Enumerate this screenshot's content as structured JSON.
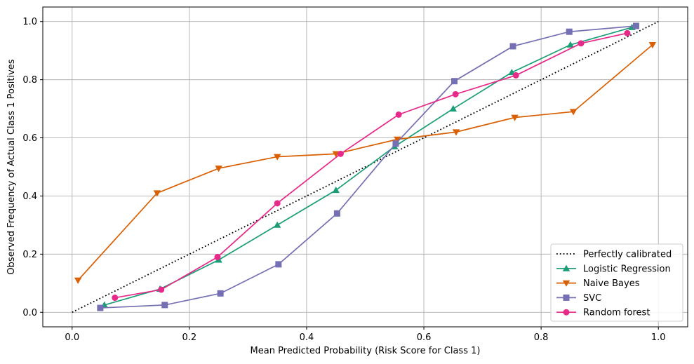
{
  "chart_data": {
    "type": "line",
    "title": "",
    "xlabel": "Mean Predicted Probability (Risk Score for Class 1)",
    "ylabel": "Observed Frequency of Actual Class 1 Positives",
    "xlim": [
      -0.05,
      1.05
    ],
    "ylim": [
      -0.05,
      1.05
    ],
    "xticks": [
      0.0,
      0.2,
      0.4,
      0.6,
      0.8,
      1.0
    ],
    "yticks": [
      0.0,
      0.2,
      0.4,
      0.6,
      0.8,
      1.0
    ],
    "xtick_labels": [
      "0.0",
      "0.2",
      "0.4",
      "0.6",
      "0.8",
      "1.0"
    ],
    "ytick_labels": [
      "0.0",
      "0.2",
      "0.4",
      "0.6",
      "0.8",
      "1.0"
    ],
    "grid": true,
    "legend_position": "bottom-right",
    "reference": {
      "name": "Perfectly calibrated",
      "x": [
        0,
        1
      ],
      "y": [
        0,
        1
      ],
      "color": "#000000",
      "style": "dotted"
    },
    "series": [
      {
        "name": "Logistic Regression",
        "color": "#1b9e77",
        "marker": "triangle-up",
        "x": [
          0.055,
          0.15,
          0.25,
          0.35,
          0.45,
          0.55,
          0.65,
          0.75,
          0.85,
          0.955
        ],
        "y": [
          0.025,
          0.08,
          0.18,
          0.3,
          0.42,
          0.57,
          0.7,
          0.825,
          0.92,
          0.98
        ]
      },
      {
        "name": "Naive Bayes",
        "color": "#d95f02",
        "marker": "triangle-down",
        "x": [
          0.01,
          0.145,
          0.25,
          0.35,
          0.45,
          0.555,
          0.655,
          0.755,
          0.855,
          0.99
        ],
        "y": [
          0.11,
          0.41,
          0.495,
          0.535,
          0.545,
          0.595,
          0.62,
          0.67,
          0.69,
          0.92
        ]
      },
      {
        "name": "SVC",
        "color": "#7570b3",
        "marker": "square",
        "x": [
          0.048,
          0.158,
          0.253,
          0.352,
          0.452,
          0.552,
          0.652,
          0.752,
          0.848,
          0.962
        ],
        "y": [
          0.015,
          0.025,
          0.065,
          0.165,
          0.34,
          0.58,
          0.795,
          0.915,
          0.965,
          0.985
        ]
      },
      {
        "name": "Random forest",
        "color": "#e7298a",
        "marker": "circle",
        "x": [
          0.073,
          0.152,
          0.248,
          0.35,
          0.458,
          0.557,
          0.654,
          0.757,
          0.868,
          0.947
        ],
        "y": [
          0.05,
          0.078,
          0.19,
          0.375,
          0.545,
          0.68,
          0.75,
          0.815,
          0.925,
          0.96
        ]
      }
    ]
  }
}
